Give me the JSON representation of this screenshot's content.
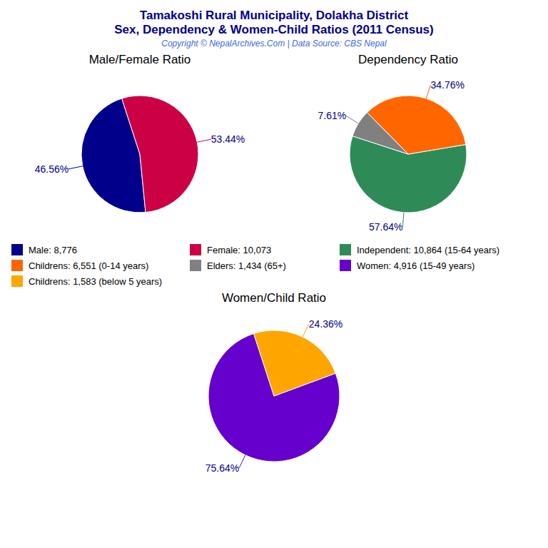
{
  "title": "Tamakoshi Rural Municipality, Dolakha District",
  "subtitle": "Sex, Dependency & Women-Child Ratios (2011 Census)",
  "annotations": [
    "Copyright © NepalArchives.Com | Data Source: CBS Nepal"
  ],
  "chart_data": [
    {
      "type": "pie",
      "title": "Male/Female Ratio",
      "categories": [
        "Male: 8,776",
        "Female: 10,073"
      ],
      "values": [
        46.56,
        53.44
      ],
      "value_labels": [
        "46.56%",
        "53.44%"
      ],
      "colors": [
        "#00008B",
        "#CC0044"
      ],
      "data_labels": true
    },
    {
      "type": "pie",
      "title": "Dependency Ratio",
      "categories": [
        "Independent: 10,864 (15-64 years)",
        "Childrens: 6,551 (0-14 years)",
        "Elders: 1,434 (65+)"
      ],
      "values": [
        57.64,
        34.76,
        7.61
      ],
      "value_labels": [
        "57.64%",
        "34.76%",
        "7.61%"
      ],
      "colors": [
        "#2E8B57",
        "#FF6600",
        "#808080"
      ],
      "data_labels": true
    },
    {
      "type": "pie",
      "title": "Women/Child Ratio",
      "categories": [
        "Women: 4,916 (15-49 years)",
        "Childrens: 1,583 (below 5 years)"
      ],
      "values": [
        75.64,
        24.36
      ],
      "value_labels": [
        "75.64%",
        "24.36%"
      ],
      "colors": [
        "#6600CC",
        "#FFA500"
      ],
      "data_labels": true
    }
  ]
}
